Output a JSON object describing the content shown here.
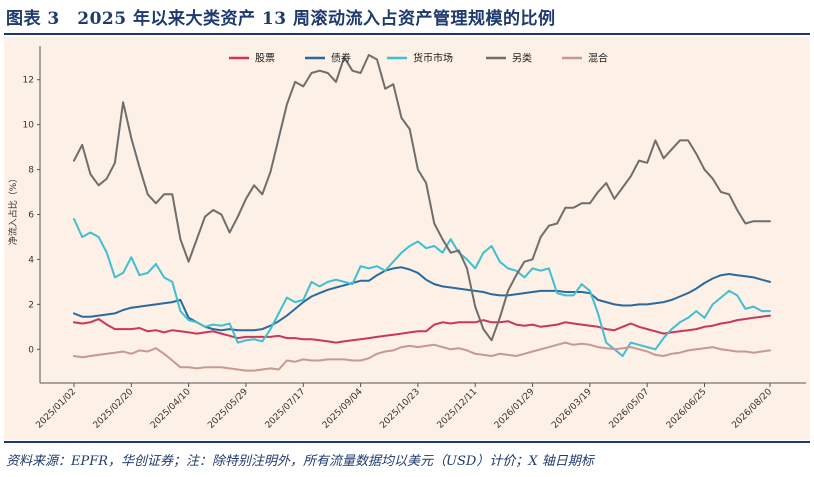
{
  "header": {
    "title": "图表 3　2025 年以来大类资产 13 周滚动流入占资产管理规模的比例"
  },
  "footer": {
    "source": "资料来源：EPFR，华创证券；注：除特别注明外，所有流量数据均以美元（USD）计价；X 轴日期标"
  },
  "chart_data": {
    "type": "line",
    "ylabel": "净流入占比（%）",
    "ylim": [
      -1.5,
      13.5
    ],
    "yticks": [
      0,
      2,
      4,
      6,
      8,
      10,
      12
    ],
    "x_tick_labels": [
      "2025/01/02",
      "2025/02/20",
      "2025/04/10",
      "2025/05/29",
      "2025/07/17",
      "2025/09/04",
      "2025/10/23",
      "2025/12/11",
      "2026/01/29",
      "2026/03/19",
      "2026/05/07",
      "2026/06/25",
      "2026/08/20"
    ],
    "x_tick_index": [
      0,
      7,
      14,
      21,
      28,
      35,
      42,
      49,
      56,
      63,
      70,
      77,
      85
    ],
    "x_count": 86,
    "legend_position": "top",
    "grid": false,
    "series": [
      {
        "name": "股票",
        "color": "#c8385a",
        "values": [
          1.2,
          1.15,
          1.2,
          1.35,
          1.1,
          0.9,
          0.9,
          0.9,
          0.95,
          0.8,
          0.85,
          0.75,
          0.85,
          0.8,
          0.75,
          0.7,
          0.75,
          0.8,
          0.7,
          0.6,
          0.5,
          0.55,
          0.55,
          0.55,
          0.55,
          0.6,
          0.5,
          0.5,
          0.45,
          0.45,
          0.4,
          0.35,
          0.3,
          0.35,
          0.4,
          0.45,
          0.5,
          0.55,
          0.6,
          0.65,
          0.7,
          0.75,
          0.8,
          0.8,
          1.1,
          1.2,
          1.15,
          1.2,
          1.2,
          1.2,
          1.3,
          1.2,
          1.2,
          1.25,
          1.1,
          1.05,
          1.1,
          1.0,
          1.05,
          1.1,
          1.2,
          1.15,
          1.1,
          1.05,
          1.0,
          0.9,
          0.85,
          1.0,
          1.15,
          1.0,
          0.9,
          0.8,
          0.7,
          0.75,
          0.8,
          0.85,
          0.9,
          1.0,
          1.05,
          1.15,
          1.2,
          1.3,
          1.35,
          1.4,
          1.45,
          1.5
        ]
      },
      {
        "name": "债券",
        "color": "#2a6a9c",
        "values": [
          1.6,
          1.45,
          1.45,
          1.5,
          1.55,
          1.6,
          1.75,
          1.85,
          1.9,
          1.95,
          2.0,
          2.05,
          2.1,
          2.2,
          1.4,
          1.2,
          1.0,
          0.9,
          0.85,
          0.9,
          0.85,
          0.85,
          0.85,
          0.9,
          1.05,
          1.25,
          1.5,
          1.8,
          2.1,
          2.35,
          2.5,
          2.65,
          2.75,
          2.85,
          2.95,
          3.05,
          3.05,
          3.3,
          3.5,
          3.6,
          3.65,
          3.55,
          3.4,
          3.1,
          2.9,
          2.8,
          2.75,
          2.7,
          2.65,
          2.6,
          2.55,
          2.45,
          2.4,
          2.4,
          2.45,
          2.5,
          2.55,
          2.6,
          2.6,
          2.6,
          2.55,
          2.55,
          2.55,
          2.5,
          2.2,
          2.1,
          2.0,
          1.95,
          1.95,
          2.0,
          2.0,
          2.05,
          2.1,
          2.2,
          2.35,
          2.5,
          2.7,
          2.95,
          3.15,
          3.3,
          3.35,
          3.3,
          3.25,
          3.2,
          3.1,
          3.0
        ]
      },
      {
        "name": "货币市场",
        "color": "#3fbfd0",
        "values": [
          5.8,
          5.0,
          5.2,
          5.0,
          4.3,
          3.2,
          3.4,
          4.1,
          3.3,
          3.4,
          3.8,
          3.2,
          3.0,
          1.7,
          1.3,
          1.2,
          1.0,
          1.1,
          1.05,
          1.15,
          0.3,
          0.4,
          0.45,
          0.35,
          0.9,
          1.6,
          2.3,
          2.1,
          2.2,
          3.0,
          2.8,
          3.0,
          3.1,
          3.0,
          2.9,
          3.7,
          3.6,
          3.7,
          3.5,
          3.9,
          4.3,
          4.6,
          4.8,
          4.5,
          4.6,
          4.3,
          4.9,
          4.3,
          4.0,
          3.6,
          4.3,
          4.6,
          3.9,
          3.6,
          3.5,
          3.2,
          3.6,
          3.5,
          3.6,
          2.5,
          2.4,
          2.4,
          2.9,
          2.6,
          1.6,
          0.3,
          0.0,
          -0.3,
          0.3,
          0.2,
          0.1,
          0.0,
          0.5,
          0.9,
          1.2,
          1.4,
          1.7,
          1.4,
          2.0,
          2.3,
          2.6,
          2.4,
          1.8,
          1.9,
          1.7,
          1.7
        ]
      },
      {
        "name": "另类",
        "color": "#6e6e6e",
        "values": [
          8.4,
          9.1,
          7.8,
          7.3,
          7.6,
          8.3,
          11.0,
          9.4,
          8.1,
          6.9,
          6.5,
          6.9,
          6.9,
          4.9,
          3.9,
          4.9,
          5.9,
          6.2,
          6.0,
          5.2,
          5.9,
          6.7,
          7.3,
          6.9,
          7.9,
          9.4,
          10.9,
          11.9,
          11.7,
          12.3,
          12.4,
          12.3,
          11.9,
          13.0,
          12.4,
          12.3,
          13.1,
          12.9,
          11.6,
          11.8,
          10.3,
          9.8,
          8.0,
          7.4,
          5.6,
          4.9,
          4.3,
          4.4,
          3.6,
          1.9,
          0.9,
          0.4,
          1.4,
          2.6,
          3.3,
          3.9,
          4.0,
          5.0,
          5.5,
          5.6,
          6.3,
          6.3,
          6.5,
          6.5,
          7.0,
          7.4,
          6.7,
          7.2,
          7.7,
          8.4,
          8.3,
          9.3,
          8.5,
          8.9,
          9.3,
          9.3,
          8.7,
          8.0,
          7.6,
          7.0,
          6.9,
          6.2,
          5.6,
          5.7,
          5.7,
          5.7
        ]
      },
      {
        "name": "混合",
        "color": "#c49a92",
        "values": [
          -0.3,
          -0.35,
          -0.3,
          -0.25,
          -0.2,
          -0.15,
          -0.1,
          -0.2,
          -0.05,
          -0.1,
          0.05,
          -0.2,
          -0.5,
          -0.8,
          -0.8,
          -0.85,
          -0.8,
          -0.8,
          -0.8,
          -0.85,
          -0.9,
          -0.95,
          -0.95,
          -0.9,
          -0.85,
          -0.9,
          -0.5,
          -0.55,
          -0.45,
          -0.5,
          -0.5,
          -0.45,
          -0.45,
          -0.45,
          -0.5,
          -0.5,
          -0.4,
          -0.2,
          -0.1,
          -0.05,
          0.1,
          0.15,
          0.1,
          0.15,
          0.2,
          0.1,
          0.0,
          0.05,
          -0.05,
          -0.2,
          -0.25,
          -0.3,
          -0.2,
          -0.25,
          -0.3,
          -0.2,
          -0.1,
          0.0,
          0.1,
          0.2,
          0.3,
          0.2,
          0.25,
          0.2,
          0.1,
          0.05,
          0.0,
          0.05,
          0.1,
          0.0,
          -0.1,
          -0.25,
          -0.3,
          -0.2,
          -0.15,
          -0.05,
          0.0,
          0.05,
          0.1,
          0.0,
          -0.05,
          -0.1,
          -0.1,
          -0.15,
          -0.1,
          -0.05
        ]
      }
    ]
  }
}
